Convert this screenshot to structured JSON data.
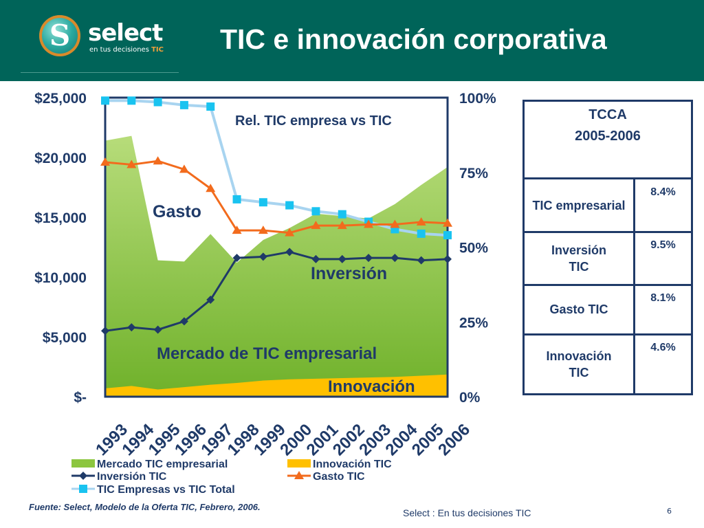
{
  "header": {
    "logo_name": "select",
    "logo_tagline_prefix": "en tus decisiones",
    "logo_tagline_tic": "TIC",
    "title": "TIC  e innovación corporativa"
  },
  "chart_data": {
    "type": "area",
    "categories": [
      "1993",
      "1994",
      "1995",
      "1996",
      "1997",
      "1998",
      "1999",
      "2000",
      "2001",
      "2002",
      "2003",
      "2004",
      "2005",
      "2006"
    ],
    "left_axis": {
      "ticks": [
        "$-",
        "$5,000",
        "$10,000",
        "$15,000",
        "$20,000",
        "$25,000"
      ],
      "ylim": [
        0,
        25000
      ]
    },
    "right_axis": {
      "ticks": [
        "0%",
        "25%",
        "50%",
        "75%",
        "100%"
      ],
      "ylim": [
        0,
        100
      ]
    },
    "series": [
      {
        "name": "Mercado TIC empresarial",
        "kind": "area",
        "axis": "left",
        "color": "#8cc63f",
        "values": [
          21400,
          21800,
          11400,
          11300,
          13600,
          11200,
          13100,
          14100,
          15300,
          15100,
          14900,
          16100,
          17700,
          19200
        ]
      },
      {
        "name": "Innovación TIC",
        "kind": "area",
        "axis": "left",
        "color": "#ffc000",
        "values": [
          700,
          900,
          600,
          800,
          1000,
          1150,
          1350,
          1450,
          1500,
          1550,
          1600,
          1650,
          1750,
          1850
        ]
      },
      {
        "name": "Inversión TIC",
        "kind": "line",
        "axis": "left",
        "color": "#1f3a68",
        "values": [
          5500,
          5800,
          5600,
          6300,
          8100,
          11600,
          11700,
          12100,
          11500,
          11500,
          11600,
          11600,
          11400,
          11500
        ]
      },
      {
        "name": "Gasto TIC",
        "kind": "line",
        "axis": "left",
        "color": "#f26b1d",
        "values": [
          19600,
          19400,
          19700,
          19000,
          17400,
          13900,
          13900,
          13700,
          14300,
          14300,
          14400,
          14400,
          14600,
          14500
        ]
      },
      {
        "name": "TIC Empresas vs TIC Total",
        "kind": "line",
        "axis": "right",
        "color": "#a8d4f0",
        "values": [
          99,
          99,
          98.5,
          97.5,
          97,
          66,
          65,
          64,
          62,
          61,
          58.5,
          56,
          54.5,
          54
        ]
      }
    ],
    "annotations": [
      "Rel. TIC empresa vs TIC",
      "Gasto",
      "Inversión",
      "Mercado de TIC empresarial",
      "Innovación"
    ],
    "legend": [
      "Mercado TIC empresarial",
      "Innovación TIC",
      "Inversión TIC",
      "Gasto TIC",
      "TIC Empresas vs TIC Total"
    ]
  },
  "tcca": {
    "title": "TCCA",
    "period": "2005-2006",
    "rows": [
      {
        "label": "TIC empresarial",
        "value": "8.4%"
      },
      {
        "label": "Inversión TIC",
        "value": "9.5%"
      },
      {
        "label": "Gasto TIC",
        "value": "8.1%"
      },
      {
        "label": "Innovación TIC",
        "value": "4.6%"
      }
    ]
  },
  "source": "Fuente: Select, Modelo de la Oferta TIC, Febrero, 2006.",
  "footer": "Select  : En tus decisiones TIC",
  "page_number": "6"
}
